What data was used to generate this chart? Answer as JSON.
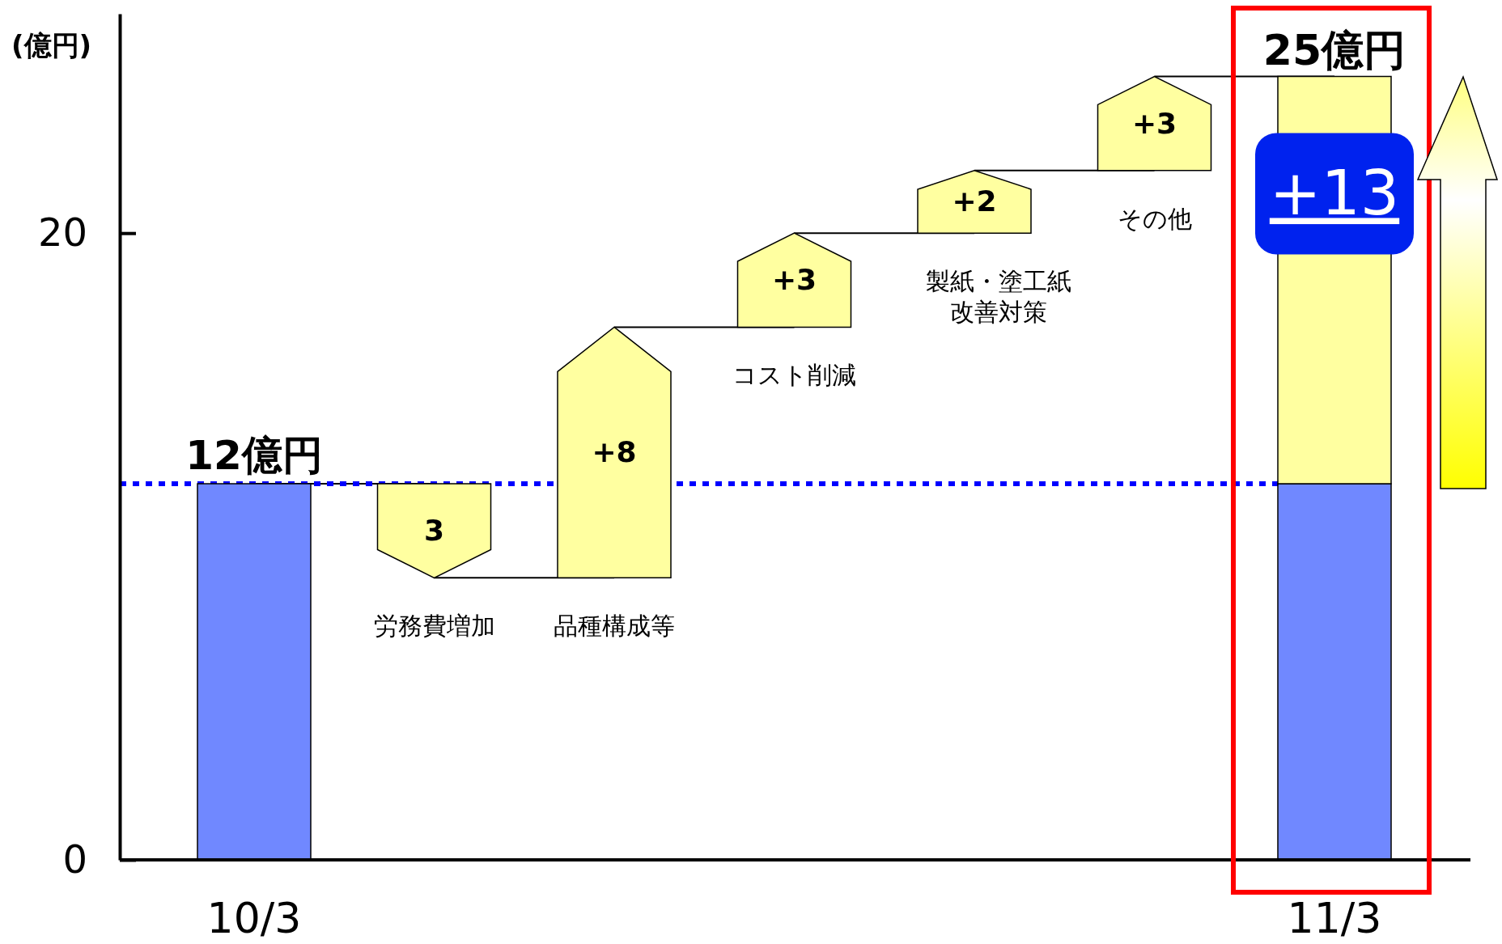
{
  "chart_data": {
    "type": "bar",
    "ylabel": "(億円)",
    "categories": [
      "10/3",
      "労務費増加",
      "品種構成等",
      "コスト削減",
      "製紙・塗工紙改善対策",
      "その他",
      "11/3"
    ],
    "series": [
      {
        "color": "#7088ff",
        "values": [
          12,
          null,
          null,
          null,
          null,
          null,
          12
        ],
        "value_labels": [
          "12億円",
          null,
          null,
          null,
          null,
          null,
          null
        ]
      },
      {
        "color": "#ffffa0",
        "base": [
          null,
          12,
          9,
          17,
          20,
          22,
          12
        ],
        "values": [
          null,
          -3,
          8,
          3,
          2,
          3,
          13
        ],
        "value_labels": [
          null,
          "3",
          "+8",
          "+3",
          "+2",
          "+3",
          "+13"
        ]
      }
    ],
    "ylim": [
      0,
      27
    ],
    "yticks": [
      0,
      20
    ],
    "ref_lines": [
      {
        "axis": "y",
        "value": 12,
        "color": "#0000ff",
        "line_style": "dotted"
      }
    ],
    "annotations": [
      {
        "text": "25億円",
        "x": "11/3",
        "y": 25
      }
    ]
  }
}
